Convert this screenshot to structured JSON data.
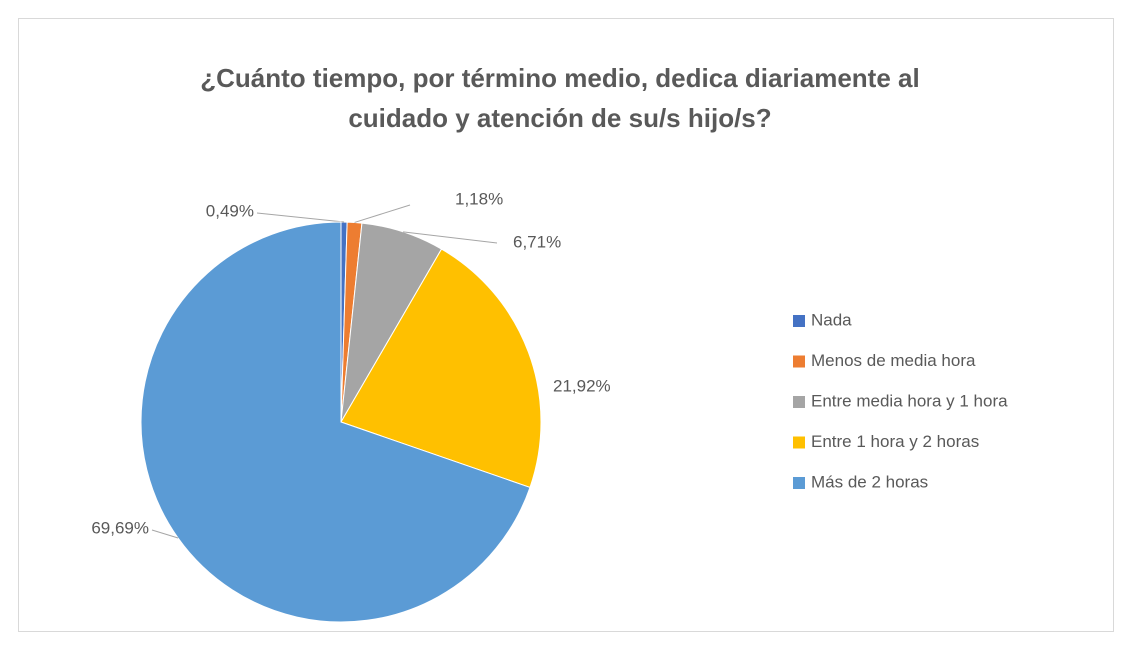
{
  "chart_data": {
    "type": "pie",
    "title": "¿Cuánto tiempo, por término medio, dedica diariamente al cuidado y atención de su/s hijo/s?",
    "title_lines": [
      "¿Cuánto tiempo, por término medio, dedica diariamente al",
      "cuidado y atención de su/s hijo/s?"
    ],
    "categories": [
      "Nada",
      "Menos de media hora",
      "Entre media hora y 1 hora",
      "Entre 1 hora y 2 horas",
      "Más de 2 horas"
    ],
    "values": [
      0.49,
      1.18,
      6.71,
      21.92,
      69.69
    ],
    "value_labels": [
      "0,49%",
      "1,18%",
      "6,71%",
      "21,92%",
      "69,69%"
    ],
    "colors": [
      "#4472c4",
      "#ed7d31",
      "#a5a5a5",
      "#ffc000",
      "#5b9bd5"
    ],
    "legend": "right"
  }
}
